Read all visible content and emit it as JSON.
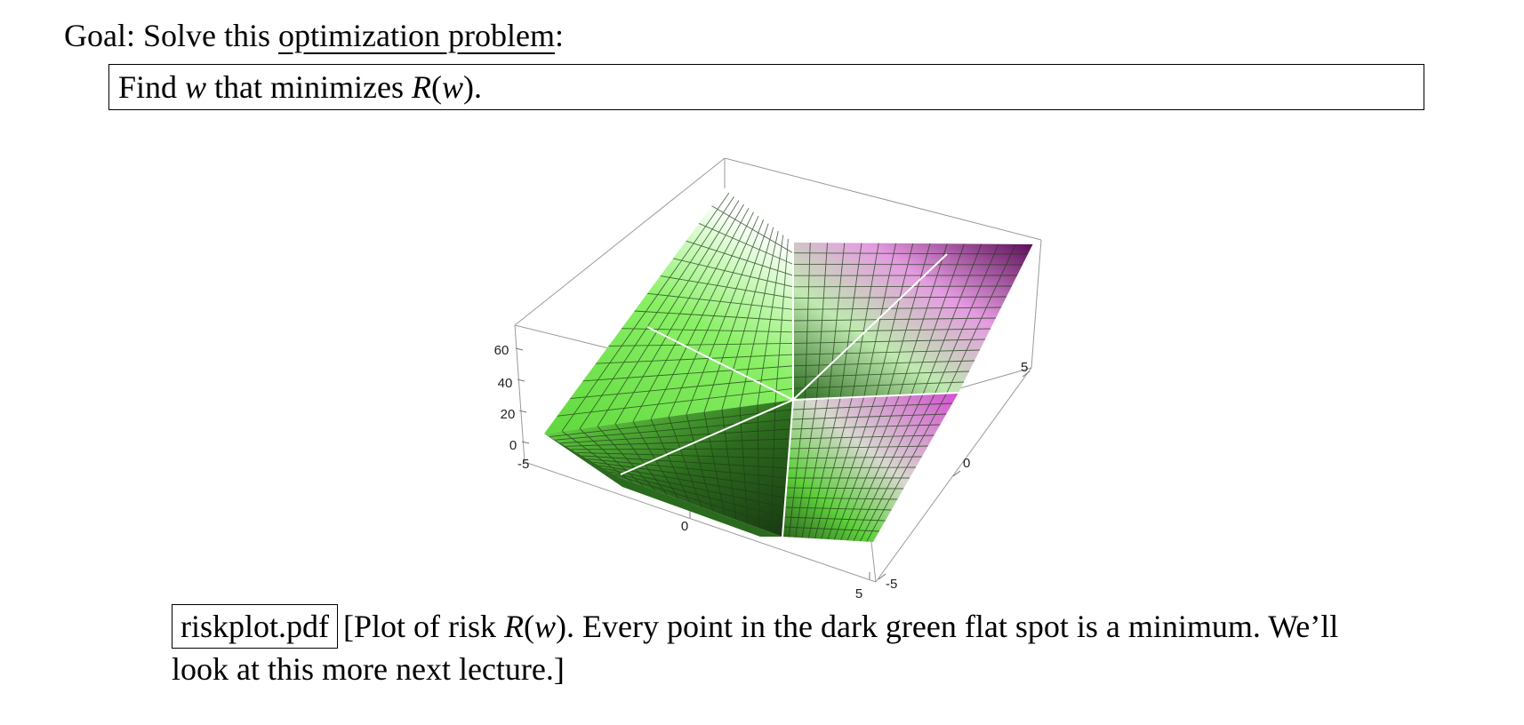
{
  "goal": {
    "prefix": "Goal: Solve this ",
    "link": "optimization problem",
    "suffix": ":"
  },
  "problem": {
    "find": "Find ",
    "var": "w",
    "that": " that minimizes ",
    "func": "R",
    "open": "(",
    "arg": "w",
    "close": ")."
  },
  "plot": {
    "z_ticks": [
      "60",
      "40",
      "20",
      "0"
    ],
    "x_ticks": [
      "-5",
      "0",
      "5"
    ],
    "y_ticks": [
      "-5",
      "0",
      "5"
    ],
    "colors": {
      "low": "#1c4014",
      "mid": "#6fe84a",
      "high": "#5a0a55",
      "pink": "#d655d6"
    }
  },
  "caption": {
    "file": "riskplot.pdf",
    "t1": "[Plot of risk ",
    "func": "R",
    "open": "(",
    "arg": "w",
    "t2": "). Every point in the dark green flat spot is a minimum. We’ll look at this more next lecture.]"
  }
}
